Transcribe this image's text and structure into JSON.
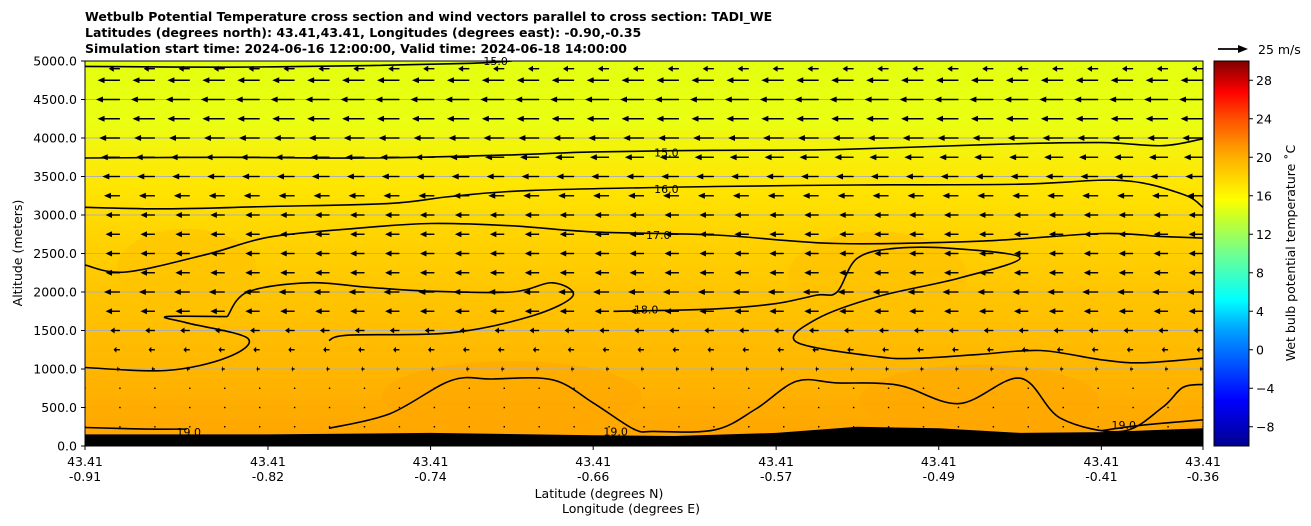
{
  "chart_data": {
    "type": "heatmap",
    "title_lines": [
      "Wetbulb Potential Temperature cross section and wind vectors parallel to cross section: TADI_WE",
      "Latitudes (degrees north): 43.41,43.41, Longitudes (degrees east): -0.90,-0.35",
      "Simulation start time: 2024-06-16 12:00:00, Valid time: 2024-06-18 14:00:00"
    ],
    "ylabel": "Altitude (meters)",
    "xlabel_lines": [
      "Latitude (degrees N)",
      "Longitude (degrees E)"
    ],
    "ylim": [
      0,
      5000
    ],
    "y_ticks": [
      0,
      500,
      1000,
      1500,
      2000,
      2500,
      3000,
      3500,
      4000,
      4500,
      5000
    ],
    "y_tick_labels": [
      "0.0",
      "500.0",
      "1000.0",
      "1500.0",
      "2000.0",
      "2500.0",
      "3000.0",
      "3500.0",
      "4000.0",
      "4500.0",
      "5000.0"
    ],
    "xlim": [
      -0.91,
      -0.36
    ],
    "x_ticks": [
      -0.91,
      -0.82,
      -0.74,
      -0.66,
      -0.57,
      -0.49,
      -0.41,
      -0.36
    ],
    "x_tick_lat_labels": [
      "43.41",
      "43.41",
      "43.41",
      "43.41",
      "43.41",
      "43.41",
      "43.41",
      "43.41"
    ],
    "x_tick_lon_labels": [
      "-0.91",
      "-0.82",
      "-0.74",
      "-0.66",
      "-0.57",
      "-0.49",
      "-0.41",
      "-0.36"
    ],
    "colorbar": {
      "label": "Wet bulb potential temperature ˚C",
      "range": [
        -10,
        30
      ],
      "ticks": [
        -8,
        -4,
        0,
        4,
        8,
        12,
        16,
        20,
        24,
        28
      ],
      "tick_labels": [
        "−8",
        "−4",
        "0",
        "4",
        "8",
        "12",
        "16",
        "20",
        "24",
        "28"
      ]
    },
    "quiver_key": {
      "label": "25 m/s",
      "speed": 25
    },
    "contours": [
      {
        "label": "15.0",
        "level": 15,
        "points": [
          [
            -0.91,
            4930
          ],
          [
            -0.84,
            4920
          ],
          [
            -0.77,
            4940
          ],
          [
            -0.72,
            4970
          ],
          [
            -0.7,
            5000
          ]
        ],
        "label_at": [
          -0.714,
          5000
        ]
      },
      {
        "label": "15.0",
        "level": 15,
        "points": [
          [
            -0.91,
            3740
          ],
          [
            -0.84,
            3750
          ],
          [
            -0.77,
            3740
          ],
          [
            -0.7,
            3780
          ],
          [
            -0.66,
            3820
          ],
          [
            -0.6,
            3840
          ],
          [
            -0.54,
            3850
          ],
          [
            -0.46,
            3920
          ],
          [
            -0.41,
            3940
          ],
          [
            -0.38,
            3900
          ],
          [
            -0.36,
            3990
          ]
        ],
        "label_at": [
          -0.63,
          3810
        ]
      },
      {
        "label": "16.0",
        "level": 16,
        "points": [
          [
            -0.91,
            3100
          ],
          [
            -0.87,
            3080
          ],
          [
            -0.82,
            3110
          ],
          [
            -0.76,
            3150
          ],
          [
            -0.73,
            3240
          ],
          [
            -0.69,
            3320
          ],
          [
            -0.6,
            3370
          ],
          [
            -0.53,
            3390
          ],
          [
            -0.45,
            3400
          ],
          [
            -0.4,
            3450
          ],
          [
            -0.37,
            3270
          ],
          [
            -0.36,
            3100
          ]
        ],
        "label_at": [
          -0.63,
          3340
        ]
      },
      {
        "label": "17.0",
        "level": 17,
        "points": [
          [
            -0.91,
            2350
          ],
          [
            -0.89,
            2260
          ],
          [
            -0.85,
            2490
          ],
          [
            -0.82,
            2710
          ],
          [
            -0.78,
            2820
          ],
          [
            -0.74,
            2890
          ],
          [
            -0.7,
            2860
          ],
          [
            -0.66,
            2780
          ],
          [
            -0.6,
            2740
          ],
          [
            -0.54,
            2630
          ],
          [
            -0.47,
            2660
          ],
          [
            -0.41,
            2760
          ],
          [
            -0.38,
            2720
          ],
          [
            -0.36,
            2700
          ]
        ],
        "label_at": [
          -0.634,
          2740
        ]
      },
      {
        "label": "17.0",
        "level": 17,
        "points": [
          [
            -0.84,
            1680
          ],
          [
            -0.83,
            2000
          ],
          [
            -0.8,
            2120
          ],
          [
            -0.77,
            2060
          ],
          [
            -0.74,
            2010
          ],
          [
            -0.7,
            2000
          ],
          [
            -0.68,
            2120
          ],
          [
            -0.67,
            1950
          ],
          [
            -0.69,
            1690
          ],
          [
            -0.73,
            1470
          ],
          [
            -0.78,
            1440
          ],
          [
            -0.79,
            1370
          ]
        ],
        "label_at": null
      },
      {
        "label": "18.0",
        "level": 18,
        "points": [
          [
            -0.91,
            1020
          ],
          [
            -0.87,
            980
          ],
          [
            -0.84,
            1150
          ],
          [
            -0.83,
            1400
          ],
          [
            -0.86,
            1600
          ],
          [
            -0.87,
            1680
          ],
          [
            -0.84,
            1680
          ]
        ],
        "label_at": null
      },
      {
        "label": "18.0",
        "level": 18,
        "points": [
          [
            -0.65,
            1750
          ],
          [
            -0.6,
            1780
          ],
          [
            -0.57,
            1850
          ],
          [
            -0.55,
            1960
          ],
          [
            -0.54,
            2000
          ],
          [
            -0.53,
            2440
          ],
          [
            -0.51,
            2570
          ],
          [
            -0.48,
            2560
          ],
          [
            -0.45,
            2440
          ],
          [
            -0.48,
            2180
          ],
          [
            -0.52,
            1940
          ],
          [
            -0.55,
            1650
          ],
          [
            -0.56,
            1350
          ],
          [
            -0.52,
            1160
          ],
          [
            -0.5,
            1140
          ],
          [
            -0.47,
            1190
          ],
          [
            -0.44,
            1240
          ],
          [
            -0.41,
            1120
          ],
          [
            -0.39,
            1080
          ],
          [
            -0.36,
            1140
          ]
        ],
        "label_at": [
          -0.64,
          1770
        ]
      },
      {
        "label": "19.0",
        "level": 19,
        "points": [
          [
            -0.91,
            240
          ],
          [
            -0.88,
            220
          ],
          [
            -0.86,
            220
          ]
        ],
        "label_at": [
          -0.865,
          180
        ]
      },
      {
        "label": "19.0",
        "level": 19,
        "points": [
          [
            -0.79,
            230
          ],
          [
            -0.76,
            420
          ],
          [
            -0.73,
            850
          ],
          [
            -0.71,
            870
          ],
          [
            -0.68,
            860
          ],
          [
            -0.66,
            560
          ],
          [
            -0.64,
            220
          ],
          [
            -0.63,
            190
          ],
          [
            -0.6,
            210
          ],
          [
            -0.58,
            480
          ],
          [
            -0.56,
            840
          ],
          [
            -0.54,
            820
          ],
          [
            -0.51,
            790
          ],
          [
            -0.48,
            550
          ],
          [
            -0.45,
            880
          ],
          [
            -0.43,
            360
          ],
          [
            -0.4,
            190
          ],
          [
            -0.38,
            500
          ],
          [
            -0.37,
            760
          ],
          [
            -0.36,
            800
          ]
        ],
        "label_at": [
          -0.655,
          190
        ]
      },
      {
        "label": "19.0",
        "level": 19,
        "points": [
          [
            -0.41,
            200
          ],
          [
            -0.39,
            270
          ],
          [
            -0.36,
            340
          ]
        ],
        "label_at": [
          -0.405,
          270
        ]
      }
    ],
    "terrain": [
      [
        -0.91,
        150
      ],
      [
        -0.82,
        150
      ],
      [
        -0.74,
        170
      ],
      [
        -0.66,
        140
      ],
      [
        -0.62,
        130
      ],
      [
        -0.57,
        170
      ],
      [
        -0.53,
        250
      ],
      [
        -0.49,
        230
      ],
      [
        -0.45,
        170
      ],
      [
        -0.41,
        180
      ],
      [
        -0.36,
        230
      ]
    ],
    "wind_rows": [
      {
        "altitude": 4900,
        "u": -3.5
      },
      {
        "altitude": 4750,
        "u": -7.0
      },
      {
        "altitude": 4500,
        "u": -7.5
      },
      {
        "altitude": 4250,
        "u": -7.0
      },
      {
        "altitude": 4000,
        "u": -6.5
      },
      {
        "altitude": 3750,
        "u": -6.0
      },
      {
        "altitude": 3500,
        "u": -5.5
      },
      {
        "altitude": 3250,
        "u": -5.0
      },
      {
        "altitude": 3000,
        "u": -4.5
      },
      {
        "altitude": 2750,
        "u": -4.5
      },
      {
        "altitude": 2500,
        "u": -4.5
      },
      {
        "altitude": 2250,
        "u": -4.5
      },
      {
        "altitude": 2000,
        "u": -5.0
      },
      {
        "altitude": 1750,
        "u": -4.5
      },
      {
        "altitude": 1500,
        "u": -3.0
      },
      {
        "altitude": 1250,
        "u": -2.0
      },
      {
        "altitude": 1000,
        "u": -1.0
      },
      {
        "altitude": 750,
        "u": -0.3
      },
      {
        "altitude": 500,
        "u": -0.2
      },
      {
        "altitude": 250,
        "u": -0.1
      }
    ],
    "wind_columns": 33
  }
}
